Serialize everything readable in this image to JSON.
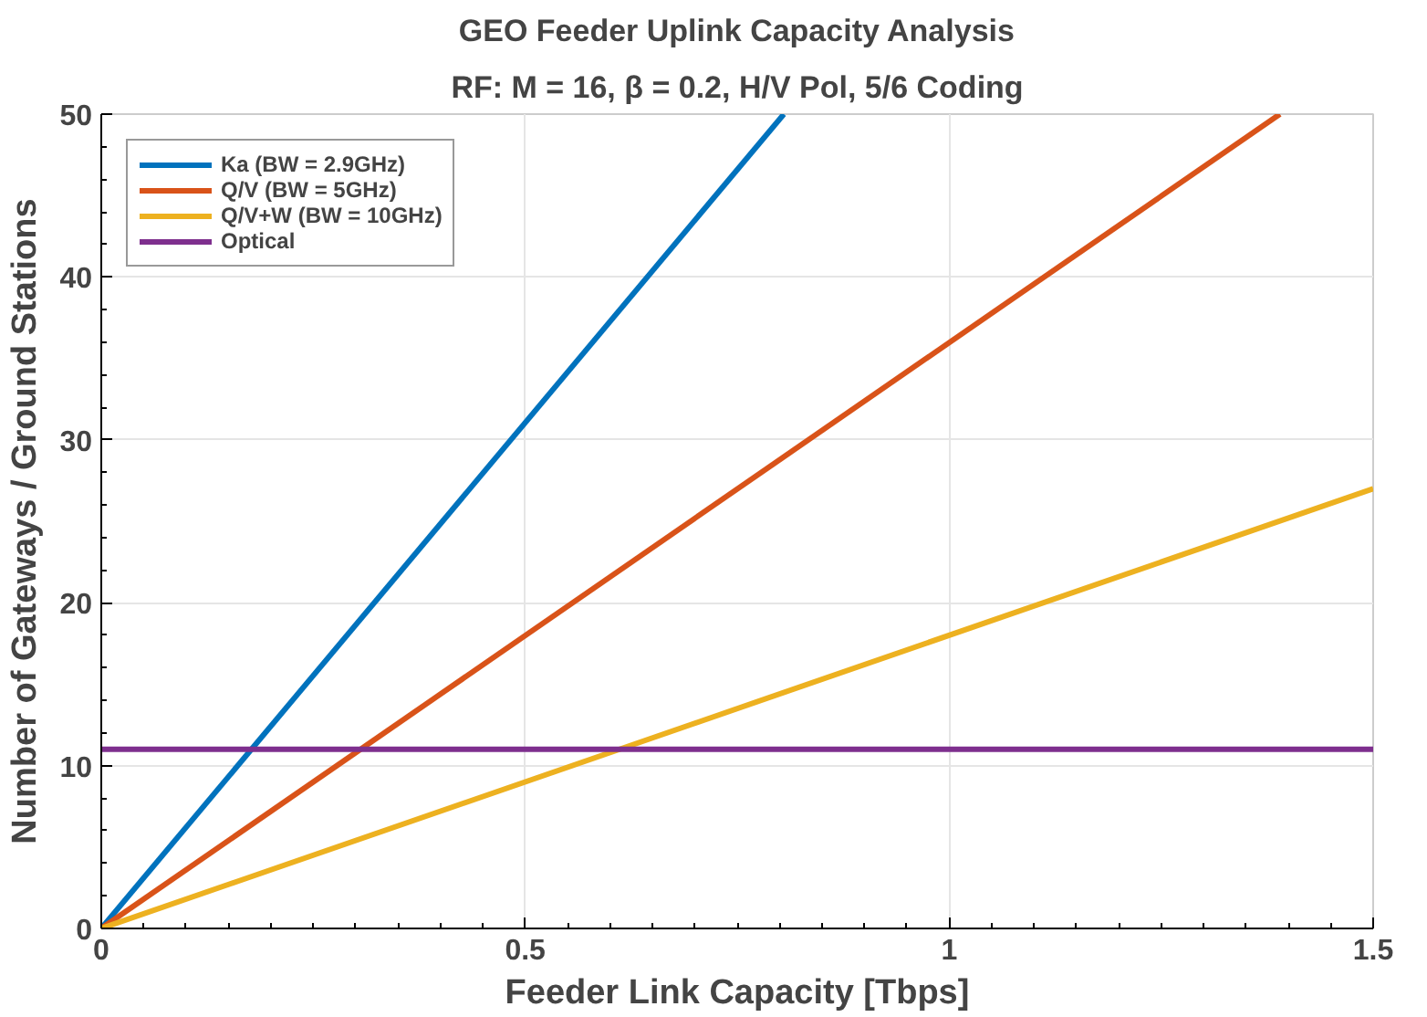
{
  "chart_data": {
    "type": "line",
    "title": "GEO Feeder Uplink Capacity Analysis",
    "subtitle": "RF: M = 16, β = 0.2, H/V Pol, 5/6 Coding",
    "xlabel": "Feeder Link Capacity [Tbps]",
    "ylabel": "Number of Gateways / Ground Stations",
    "series": [
      {
        "name": "Ka (BW = 2.9GHz)",
        "color": "#0072bd",
        "x": [
          0,
          0.805
        ],
        "values": [
          0,
          50
        ]
      },
      {
        "name": "Q/V (BW = 5GHz)",
        "color": "#d95319",
        "x": [
          0,
          1.39
        ],
        "values": [
          0,
          50
        ]
      },
      {
        "name": "Q/V+W (BW = 10GHz)",
        "color": "#edb120",
        "x": [
          0,
          1.5
        ],
        "values": [
          0,
          27
        ]
      },
      {
        "name": "Optical",
        "color": "#7e2f8e",
        "x": [
          0,
          1.5
        ],
        "values": [
          11,
          11
        ]
      }
    ],
    "xlim": [
      0,
      1.5
    ],
    "ylim": [
      0,
      50
    ],
    "xticks": [
      0,
      0.5,
      1,
      1.5
    ],
    "yticks": [
      0,
      10,
      20,
      30,
      40,
      50
    ],
    "grid": true,
    "legend": "top left",
    "marker": "none",
    "line_style": "solid"
  }
}
